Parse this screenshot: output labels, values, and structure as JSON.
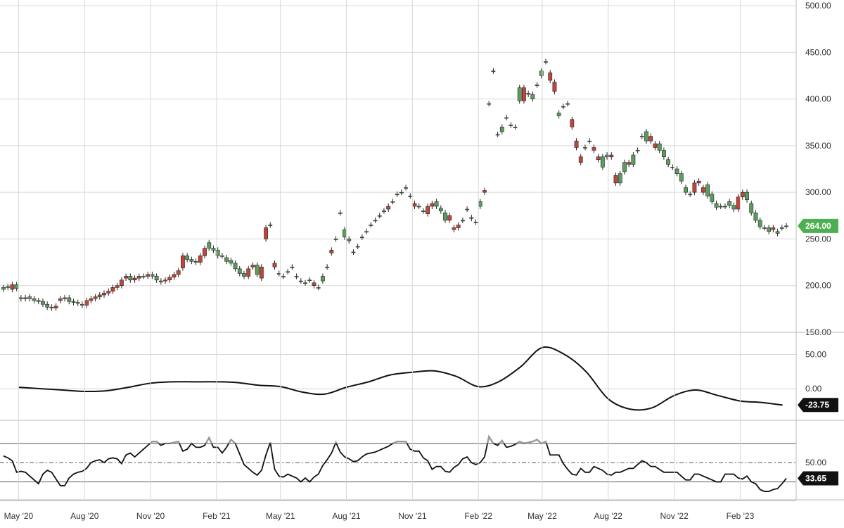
{
  "colors": {
    "up": "#5a9e5e",
    "down": "#c0453a",
    "line": "#111111",
    "grid": "#d8d8d8",
    "price_badge": "#4caf50",
    "indicator_badge": "#111111",
    "overbought": "#999999"
  },
  "chart_data": [
    {
      "type": "candlestick",
      "panel": "price",
      "ylim": [
        150,
        500
      ],
      "yticks": [
        "500.00",
        "450.00",
        "400.00",
        "350.00",
        "300.00",
        "250.00",
        "200.00",
        "150.00"
      ],
      "ytick_values": [
        500,
        450,
        400,
        350,
        300,
        250,
        200,
        150
      ],
      "last_value_label": "264.00",
      "last_value": 264,
      "x_dates": [
        "2020-05-01",
        "2020-08-01",
        "2020-11-01",
        "2021-02-01",
        "2021-05-01",
        "2021-08-01",
        "2021-11-01",
        "2022-02-01",
        "2022-05-01",
        "2022-08-01",
        "2022-11-01",
        "2023-02-01"
      ],
      "xticks": [
        "May '20",
        "Aug '20",
        "Nov '20",
        "Feb '21",
        "May '21",
        "Aug '21",
        "Nov '21",
        "Feb '22",
        "May '22",
        "Aug '22",
        "Nov '22",
        "Feb '23"
      ],
      "series": [
        {
          "close_by_week": [
            198,
            199,
            196,
            201,
            187,
            186,
            188,
            186,
            184,
            183,
            180,
            177,
            176,
            184,
            186,
            187,
            183,
            182,
            180,
            179,
            184,
            186,
            188,
            190,
            192,
            194,
            198,
            200,
            208,
            210,
            206,
            208,
            210,
            210,
            212,
            210,
            204,
            205,
            206,
            209,
            212,
            219,
            232,
            228,
            226,
            225,
            232,
            246,
            240,
            238,
            232,
            230,
            227,
            224,
            218,
            213,
            210,
            220,
            222,
            208,
            250,
            265,
            220,
            213,
            210,
            215,
            220,
            210,
            205,
            203,
            206,
            200,
            198,
            210,
            220,
            235,
            250,
            278,
            260,
            250,
            236,
            242,
            252,
            258,
            265,
            270,
            275,
            280,
            282,
            290,
            298,
            300,
            305,
            296,
            285,
            285,
            280,
            277,
            285,
            290,
            283,
            278,
            270,
            260,
            262,
            270,
            282,
            273,
            268,
            290,
            300,
            395,
            430,
            362,
            370,
            380,
            372,
            370,
            412,
            398,
            405,
            405,
            415,
            430,
            440,
            420,
            408,
            385,
            392,
            395,
            370,
            348,
            332,
            348,
            355,
            345,
            335,
            338,
            340,
            338,
            310,
            320,
            332,
            330,
            340,
            345,
            360,
            365,
            355,
            348,
            352,
            345,
            335,
            327,
            325,
            320,
            305,
            298,
            300,
            310,
            300,
            308,
            298,
            288,
            285,
            285,
            290,
            286,
            282,
            295,
            300,
            288,
            278,
            270,
            262,
            262,
            260,
            258,
            262,
            264
          ],
          "open_by_week": [
            196,
            198,
            201,
            197,
            186,
            187,
            186,
            184,
            183,
            180,
            177,
            176,
            178,
            186,
            187,
            183,
            182,
            181,
            179,
            184,
            186,
            188,
            190,
            192,
            194,
            198,
            200,
            206,
            210,
            206,
            208,
            210,
            210,
            212,
            210,
            206,
            205,
            206,
            209,
            212,
            216,
            232,
            228,
            226,
            225,
            232,
            240,
            240,
            238,
            232,
            232,
            226,
            224,
            218,
            213,
            210,
            218,
            222,
            212,
            220,
            262,
            265,
            224,
            213,
            210,
            215,
            220,
            210,
            205,
            203,
            206,
            203,
            198,
            205,
            220,
            238,
            250,
            278,
            252,
            248,
            236,
            242,
            252,
            258,
            265,
            270,
            275,
            280,
            285,
            290,
            298,
            300,
            305,
            296,
            288,
            285,
            280,
            285,
            288,
            285,
            280,
            270,
            275,
            262,
            265,
            270,
            282,
            272,
            268,
            285,
            302,
            395,
            430,
            362,
            365,
            380,
            372,
            370,
            398,
            412,
            406,
            400,
            415,
            425,
            440,
            428,
            418,
            382,
            392,
            395,
            378,
            355,
            338,
            348,
            355,
            348,
            338,
            327,
            338,
            340,
            318,
            310,
            322,
            332,
            330,
            345,
            360,
            355,
            360,
            352,
            345,
            338,
            330,
            327,
            320,
            312,
            300,
            298,
            310,
            312,
            305,
            296,
            290,
            284,
            285,
            285,
            286,
            282,
            295,
            300,
            292,
            278,
            270,
            263,
            262,
            258,
            262,
            256,
            262,
            264
          ]
        }
      ]
    },
    {
      "type": "line",
      "panel": "oscillator",
      "ylim": [
        -40,
        70
      ],
      "yticks": [
        "50.00",
        "0.00"
      ],
      "ytick_values": [
        50,
        0
      ],
      "last_value_label": "-23.75",
      "last_value": -23.75,
      "series": [
        {
          "x": [
            "2020-05-01",
            "2020-06-01",
            "2020-07-01",
            "2020-08-01",
            "2020-09-01",
            "2020-10-01",
            "2020-11-01",
            "2020-12-01",
            "2021-01-01",
            "2021-02-01",
            "2021-03-01",
            "2021-04-01",
            "2021-05-01",
            "2021-06-01",
            "2021-07-01",
            "2021-08-01",
            "2021-09-01",
            "2021-10-01",
            "2021-11-01",
            "2021-12-01",
            "2022-01-01",
            "2022-02-01",
            "2022-03-01",
            "2022-04-01",
            "2022-05-01",
            "2022-06-01",
            "2022-07-01",
            "2022-08-01",
            "2022-09-01",
            "2022-10-01",
            "2022-11-01",
            "2022-12-01",
            "2023-01-01",
            "2023-02-01",
            "2023-03-01",
            "2023-04-01"
          ],
          "y": [
            2,
            0,
            -2,
            -4,
            -3,
            2,
            8,
            10,
            10,
            10,
            9,
            5,
            3,
            -5,
            -8,
            2,
            10,
            20,
            24,
            26,
            18,
            3,
            10,
            32,
            60,
            50,
            25,
            -15,
            -30,
            -28,
            -10,
            -2,
            -10,
            -18,
            -20,
            -24
          ]
        }
      ]
    },
    {
      "type": "line",
      "panel": "rsi",
      "ylim": [
        0,
        100
      ],
      "yticks": [
        "50.00"
      ],
      "ytick_values": [
        50
      ],
      "levels": [
        70,
        50,
        30
      ],
      "last_value_label": "33.65",
      "last_value": 33.65,
      "series": [
        {
          "y": [
            57,
            55,
            52,
            40,
            41,
            40,
            36,
            32,
            28,
            38,
            42,
            40,
            33,
            26,
            26,
            34,
            38,
            40,
            41,
            44,
            50,
            52,
            53,
            50,
            54,
            55,
            54,
            49,
            58,
            60,
            56,
            60,
            64,
            68,
            72,
            72,
            68,
            70,
            70,
            71,
            72,
            62,
            64,
            70,
            66,
            66,
            68,
            76,
            66,
            66,
            60,
            66,
            74,
            70,
            59,
            48,
            44,
            40,
            37,
            42,
            58,
            71,
            43,
            36,
            35,
            38,
            36,
            34,
            30,
            34,
            30,
            35,
            38,
            47,
            53,
            60,
            71,
            61,
            56,
            54,
            51,
            52,
            56,
            59,
            60,
            61,
            63,
            65,
            67,
            70,
            72,
            72,
            72,
            64,
            62,
            62,
            55,
            52,
            43,
            46,
            46,
            41,
            40,
            45,
            48,
            54,
            56,
            50,
            48,
            50,
            56,
            77,
            70,
            68,
            73,
            66,
            67,
            69,
            72,
            70,
            71,
            72,
            74,
            70,
            72,
            58,
            58,
            58,
            49,
            43,
            38,
            37,
            44,
            40,
            40,
            46,
            44,
            42,
            38,
            37,
            40,
            40,
            42,
            44,
            44,
            48,
            52,
            50,
            46,
            46,
            43,
            40,
            40,
            40,
            40,
            36,
            32,
            32,
            38,
            38,
            36,
            34,
            32,
            30,
            30,
            38,
            38,
            38,
            34,
            33,
            36,
            30,
            28,
            22,
            20,
            20,
            22,
            23,
            28,
            33.65
          ]
        }
      ]
    }
  ]
}
